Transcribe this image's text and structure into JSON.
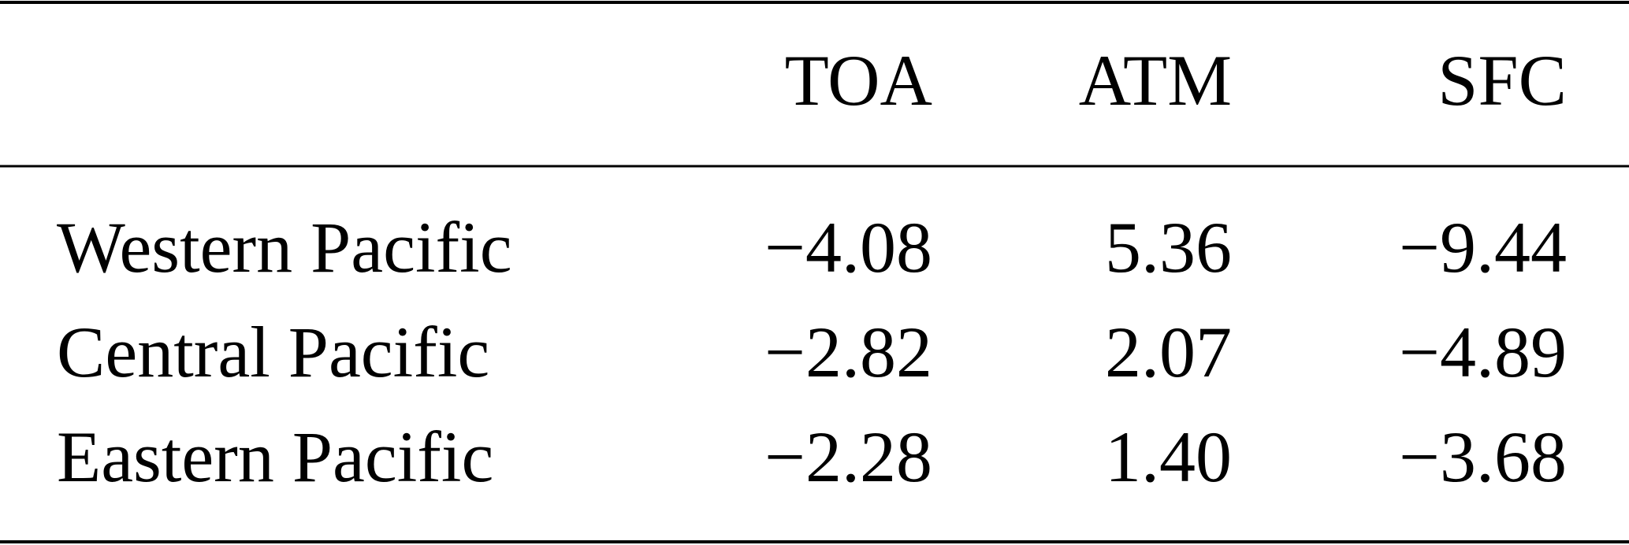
{
  "table": {
    "columns": [
      "TOA",
      "ATM",
      "SFC"
    ],
    "rows": [
      {
        "label": "Western Pacific",
        "values": [
          "−4.08",
          "5.36",
          "−9.44"
        ]
      },
      {
        "label": "Central Pacific",
        "values": [
          "−2.82",
          "2.07",
          "−4.89"
        ]
      },
      {
        "label": "Eastern Pacific",
        "values": [
          "−2.28",
          "1.40",
          "−3.68"
        ]
      }
    ]
  }
}
